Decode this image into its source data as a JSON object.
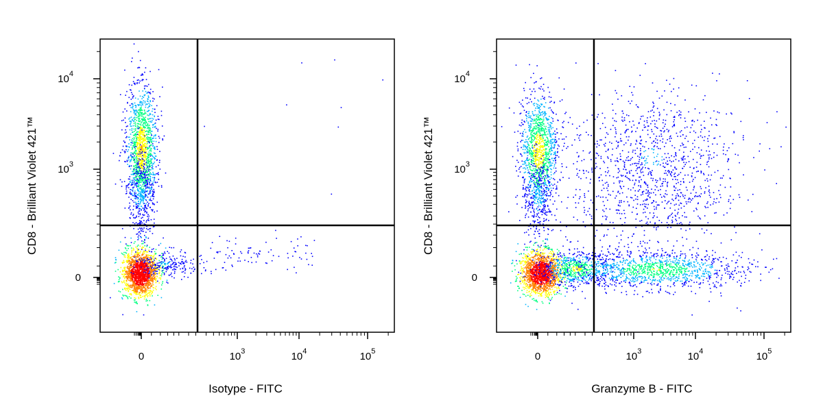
{
  "figure": {
    "panels": [
      {
        "xlabel": "Isotype - FITC",
        "ylabel": "CD8 - Brilliant Violet 421™"
      },
      {
        "xlabel": "Granzyme B - FITC",
        "ylabel": "CD8 - Brilliant Violet 421™"
      }
    ]
  },
  "chart_data": [
    {
      "type": "scatter",
      "subtype": "flow-cytometry-density-dot-plot",
      "xlabel": "Isotype - FITC",
      "ylabel": "CD8 - Brilliant Violet 421™",
      "x_scale": "biexponential",
      "y_scale": "biexponential",
      "x_ticks": [
        {
          "base": "0",
          "exp": ""
        },
        {
          "base": "10",
          "exp": "3"
        },
        {
          "base": "10",
          "exp": "4"
        },
        {
          "base": "10",
          "exp": "5"
        }
      ],
      "y_ticks": [
        {
          "base": "0",
          "exp": ""
        },
        {
          "base": "10",
          "exp": "3"
        },
        {
          "base": "10",
          "exp": "4"
        }
      ],
      "quadrant_gate": {
        "x": 300,
        "y": 250
      },
      "color_scale": [
        "#0000ff",
        "#00b4ff",
        "#00ff80",
        "#ffff00",
        "#ff8000",
        "#ff0000"
      ],
      "populations": [
        {
          "name_visible": false,
          "x_center": 0,
          "y_center": 1500,
          "density": "high",
          "shape": "vertical streak"
        },
        {
          "name_visible": false,
          "x_center": 0,
          "y_center": 0,
          "density": "very high",
          "shape": "dense blob"
        },
        {
          "name_visible": false,
          "x_range": [
            300,
            8000
          ],
          "y_center": 0,
          "density": "very low",
          "shape": "sparse tail"
        }
      ]
    },
    {
      "type": "scatter",
      "subtype": "flow-cytometry-density-dot-plot",
      "xlabel": "Granzyme B - FITC",
      "ylabel": "CD8 - Brilliant Violet 421™",
      "x_scale": "biexponential",
      "y_scale": "biexponential",
      "x_ticks": [
        {
          "base": "0",
          "exp": ""
        },
        {
          "base": "10",
          "exp": "3"
        },
        {
          "base": "10",
          "exp": "4"
        },
        {
          "base": "10",
          "exp": "5"
        }
      ],
      "y_ticks": [
        {
          "base": "0",
          "exp": ""
        },
        {
          "base": "10",
          "exp": "3"
        },
        {
          "base": "10",
          "exp": "4"
        }
      ],
      "quadrant_gate": {
        "x": 300,
        "y": 250
      },
      "color_scale": [
        "#0000ff",
        "#00b4ff",
        "#00ff80",
        "#ffff00",
        "#ff8000",
        "#ff0000"
      ],
      "populations": [
        {
          "name_visible": false,
          "x_center": 0,
          "y_center": 1200,
          "density": "high",
          "shape": "vertical streak"
        },
        {
          "name_visible": false,
          "x_center": 0,
          "y_center": 0,
          "density": "very high",
          "shape": "dense blob"
        },
        {
          "name_visible": false,
          "x_range": [
            300,
            15000
          ],
          "y_center": 0,
          "density": "medium",
          "shape": "horizontal band"
        },
        {
          "name_visible": false,
          "x_range": [
            500,
            15000
          ],
          "y_range": [
            300,
            6000
          ],
          "density": "low",
          "shape": "diffuse cloud"
        }
      ]
    }
  ]
}
